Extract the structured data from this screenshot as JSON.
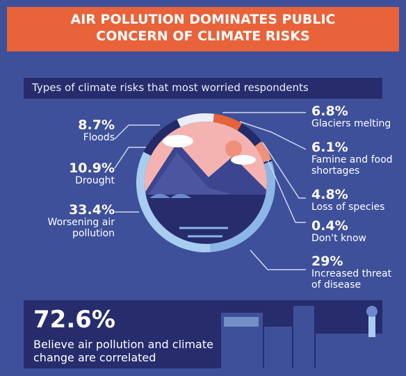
{
  "header": {
    "title": "AIR POLLUTION DOMINATES PUBLIC CONCERN OF CLIMATE RISKS"
  },
  "chart_data": {
    "type": "pie",
    "donut": true,
    "subtitle": "Types of climate risks that most worried respondents",
    "categories": [
      "Glaciers melting",
      "Famine and food shortages",
      "Loss of species",
      "Don't know",
      "Increased threat of disease",
      "Worsening air pollution",
      "Drought",
      "Floods"
    ],
    "values": [
      6.8,
      6.1,
      4.8,
      0.4,
      29,
      33.4,
      10.9,
      8.7
    ],
    "value_labels": [
      "6.8%",
      "6.1%",
      "4.8%",
      "0.4%",
      "29%",
      "33.4%",
      "10.9%",
      "8.7%"
    ],
    "colors": [
      "#e8623a",
      "#232a66",
      "#f08f7a",
      "#232a66",
      "#8cb6e8",
      "#a9cdf0",
      "#232a66",
      "#e9eef8"
    ]
  },
  "callout": {
    "figure": "72.6%",
    "text": "Believe air pollution and climate change are correlated"
  }
}
